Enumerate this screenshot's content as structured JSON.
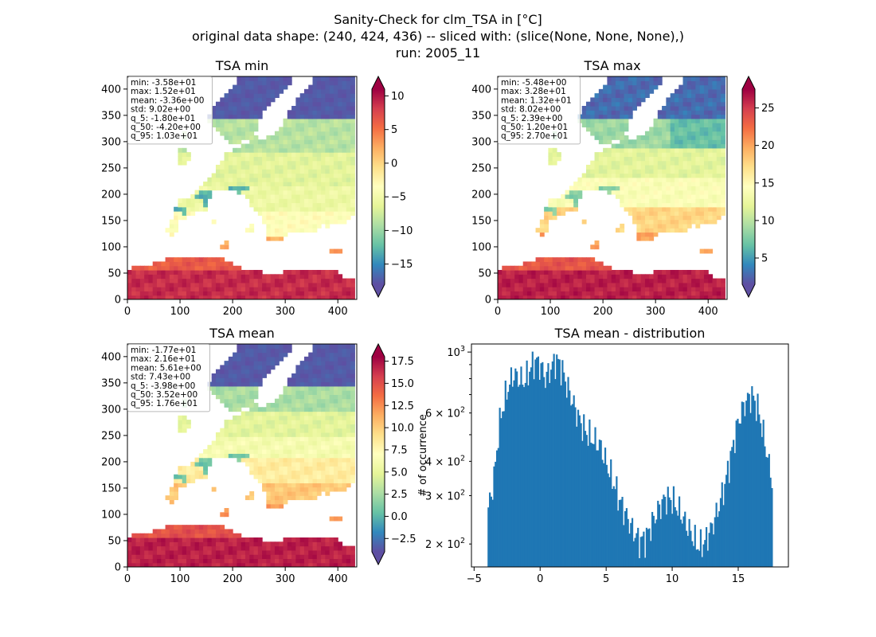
{
  "figure": {
    "title_lines": [
      "Sanity-Check for clm_TSA in [°C]",
      "original data shape: (240, 424, 436) -- sliced with: (slice(None, None, None),)",
      "run: 2005_11"
    ]
  },
  "colors": {
    "land_far_north": "#5e4fa2",
    "sea": "#ffffff",
    "hist_bar": "#1f77b4",
    "colormap": [
      "#5e4fa2",
      "#3288bd",
      "#66c2a5",
      "#abdda4",
      "#e6f598",
      "#ffffbf",
      "#fee08b",
      "#fdae61",
      "#f46d43",
      "#d53e4f",
      "#9e0142"
    ]
  },
  "chart_data": [
    {
      "type": "heatmap",
      "title": "TSA min",
      "x_ticks": [
        0,
        100,
        200,
        300,
        400
      ],
      "y_ticks": [
        0,
        50,
        100,
        150,
        200,
        250,
        300,
        350,
        400
      ],
      "xlim": [
        0,
        436
      ],
      "ylim": [
        0,
        424
      ],
      "colorbar": {
        "range": [
          -18,
          11
        ],
        "ticks": [
          10,
          5,
          0,
          -5,
          -10,
          -15
        ],
        "tick_labels": [
          "10",
          "5",
          "0",
          "−5",
          "−10",
          "−15"
        ],
        "extend": "both"
      },
      "stats": [
        "min: -3.58e+01",
        "max: 1.52e+01",
        "mean: -3.36e+00",
        "std: 9.02e+00",
        "q_5: -1.80e+01",
        "q_50: -4.20e+00",
        "q_95: 1.03e+01"
      ]
    },
    {
      "type": "heatmap",
      "title": "TSA max",
      "x_ticks": [
        0,
        100,
        200,
        300,
        400
      ],
      "y_ticks": [
        0,
        50,
        100,
        150,
        200,
        250,
        300,
        350,
        400
      ],
      "xlim": [
        0,
        436
      ],
      "ylim": [
        0,
        424
      ],
      "colorbar": {
        "range": [
          1.5,
          27.5
        ],
        "ticks": [
          25,
          20,
          15,
          10,
          5
        ],
        "tick_labels": [
          "25",
          "20",
          "15",
          "10",
          "5"
        ],
        "extend": "both"
      },
      "stats": [
        "min: -5.48e+00",
        "max: 3.28e+01",
        "mean: 1.32e+01",
        "std: 8.02e+00",
        "q_5: 2.39e+00",
        "q_50: 1.20e+01",
        "q_95: 2.70e+01"
      ]
    },
    {
      "type": "heatmap",
      "title": "TSA mean",
      "x_ticks": [
        0,
        100,
        200,
        300,
        400
      ],
      "y_ticks": [
        0,
        50,
        100,
        150,
        200,
        250,
        300,
        350,
        400
      ],
      "xlim": [
        0,
        436
      ],
      "ylim": [
        0,
        424
      ],
      "colorbar": {
        "range": [
          -4,
          18
        ],
        "ticks": [
          17.5,
          15.0,
          12.5,
          10.0,
          7.5,
          5.0,
          2.5,
          0.0,
          -2.5
        ],
        "tick_labels": [
          "17.5",
          "15.0",
          "12.5",
          "10.0",
          "7.5",
          "5.0",
          "2.5",
          "0.0",
          "−2.5"
        ],
        "extend": "both"
      },
      "stats": [
        "min: -1.77e+01",
        "max: 2.16e+01",
        "mean: 5.61e+00",
        "std: 7.43e+00",
        "q_5: -3.98e+00",
        "q_50: 3.52e+00",
        "q_95: 1.76e+01"
      ]
    },
    {
      "type": "bar",
      "title": "TSA mean - distribution",
      "ylabel": "# of occurrence",
      "y_scale": "log",
      "xlim": [
        -5.2,
        18.8
      ],
      "ylim": [
        165,
        1070
      ],
      "x_ticks": [
        -5,
        0,
        5,
        10,
        15
      ],
      "x_tick_labels": [
        "−5",
        "0",
        "5",
        "10",
        "15"
      ],
      "y_major_ticks": [
        {
          "value": 1000,
          "base": "10",
          "exp": "3"
        }
      ],
      "y_minor_ticks": [
        {
          "value": 200,
          "mant": "2",
          "base": "10",
          "exp": "2"
        },
        {
          "value": 300,
          "mant": "3",
          "base": "10",
          "exp": "2"
        },
        {
          "value": 400,
          "mant": "4",
          "base": "10",
          "exp": "2"
        },
        {
          "value": 600,
          "mant": "6",
          "base": "10",
          "exp": "2"
        }
      ],
      "anchor_points": [
        [
          -3.98,
          265
        ],
        [
          -3.7,
          300
        ],
        [
          -3.4,
          380
        ],
        [
          -3.1,
          540
        ],
        [
          -2.8,
          640
        ],
        [
          -2.4,
          750
        ],
        [
          -2.0,
          830
        ],
        [
          -1.6,
          800
        ],
        [
          -1.2,
          780
        ],
        [
          -0.8,
          860
        ],
        [
          -0.4,
          930
        ],
        [
          0.0,
          900
        ],
        [
          0.4,
          800
        ],
        [
          0.8,
          870
        ],
        [
          1.2,
          940
        ],
        [
          1.6,
          880
        ],
        [
          2.0,
          760
        ],
        [
          2.5,
          650
        ],
        [
          3.0,
          560
        ],
        [
          3.5,
          510
        ],
        [
          4.0,
          480
        ],
        [
          4.5,
          460
        ],
        [
          5.0,
          395
        ],
        [
          5.5,
          340
        ],
        [
          6.0,
          290
        ],
        [
          6.5,
          255
        ],
        [
          7.0,
          225
        ],
        [
          7.5,
          205
        ],
        [
          8.0,
          210
        ],
        [
          8.5,
          240
        ],
        [
          9.0,
          270
        ],
        [
          9.5,
          295
        ],
        [
          10.0,
          290
        ],
        [
          10.5,
          265
        ],
        [
          11.0,
          240
        ],
        [
          11.5,
          215
        ],
        [
          12.0,
          195
        ],
        [
          12.5,
          205
        ],
        [
          13.0,
          230
        ],
        [
          13.5,
          270
        ],
        [
          14.0,
          330
        ],
        [
          14.5,
          430
        ],
        [
          15.0,
          560
        ],
        [
          15.5,
          650
        ],
        [
          16.0,
          700
        ],
        [
          16.5,
          620
        ],
        [
          17.0,
          470
        ],
        [
          17.4,
          370
        ],
        [
          17.6,
          340
        ]
      ]
    }
  ]
}
